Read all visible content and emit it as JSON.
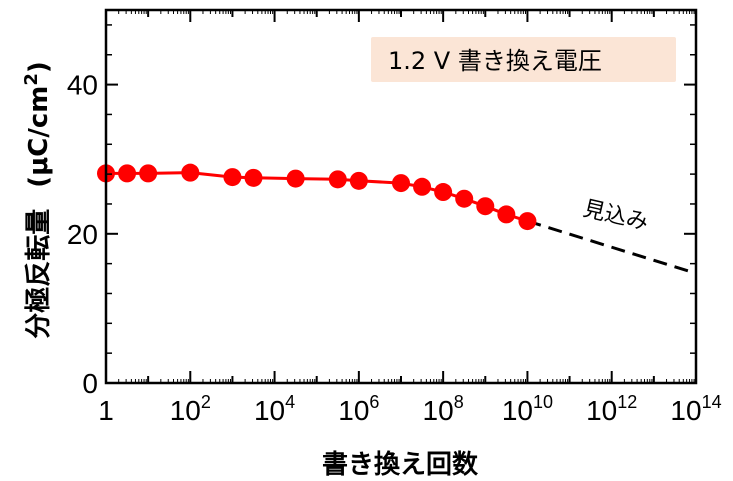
{
  "chart_data": {
    "type": "line",
    "xscale": "log",
    "xlim": [
      1,
      100000000000000
    ],
    "ylim": [
      0,
      50
    ],
    "xticks": [
      {
        "base": "1",
        "exp": ""
      },
      {
        "base": "10",
        "exp": "2"
      },
      {
        "base": "10",
        "exp": "4"
      },
      {
        "base": "10",
        "exp": "6"
      },
      {
        "base": "10",
        "exp": "8"
      },
      {
        "base": "10",
        "exp": "10"
      },
      {
        "base": "10",
        "exp": "12"
      },
      {
        "base": "10",
        "exp": "14"
      }
    ],
    "xtick_values": [
      1,
      100,
      10000,
      1000000,
      100000000,
      10000000000,
      1000000000000,
      100000000000000
    ],
    "yticks": [
      0,
      20,
      40
    ],
    "xlabel": "書き換え回数",
    "ylabel": "分極反転量",
    "ylabel_unit": "(μC/cm",
    "ylabel_unit_sup": "2",
    "ylabel_unit_close": ")",
    "legend_box": "1.2 V 書き換え電圧",
    "legend_box_color": "#fbe5d6",
    "series": [
      {
        "style": "measured",
        "color": "#ff0000",
        "x": [
          1,
          3.16,
          10,
          100,
          1000,
          3160,
          31600,
          316000,
          1000000,
          10000000,
          31600000,
          100000000,
          316000000,
          1000000000,
          3160000000,
          10000000000
        ],
        "y": [
          28.1,
          28.1,
          28.1,
          28.2,
          27.6,
          27.5,
          27.4,
          27.3,
          27.1,
          26.8,
          26.3,
          25.6,
          24.7,
          23.7,
          22.6,
          21.7
        ]
      },
      {
        "style": "projection",
        "color": "#000000",
        "label": "見込み",
        "x": [
          10000000000,
          100000000000000
        ],
        "y": [
          21.7,
          14.7
        ]
      }
    ]
  }
}
